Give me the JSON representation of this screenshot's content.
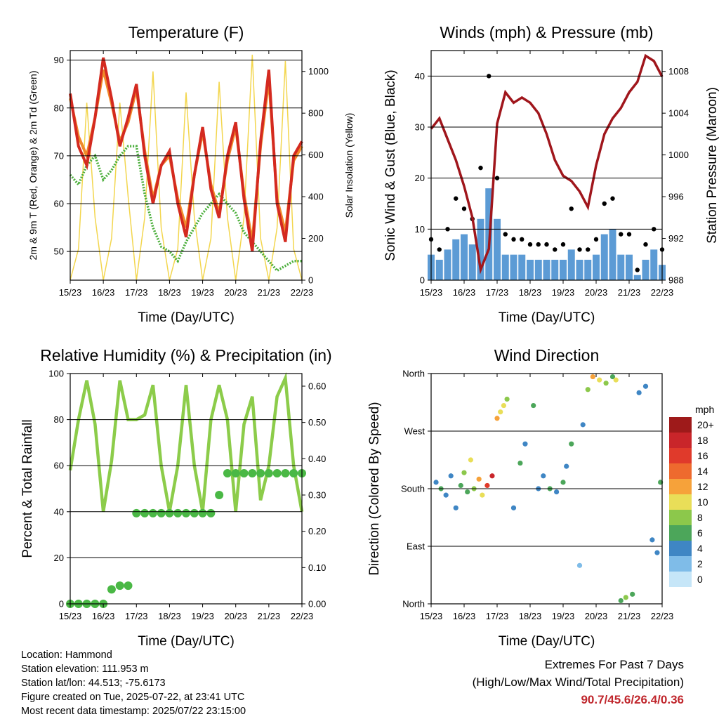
{
  "x_ticks": [
    "15/23",
    "16/23",
    "17/23",
    "18/23",
    "19/23",
    "20/23",
    "21/23",
    "22/23"
  ],
  "xlabel": "Time (Day/UTC)",
  "chart_data": [
    {
      "type": "line",
      "title": "Temperature (F)",
      "ylabel": "2m & 9m T (Red, Orange) & 2m Td (Green)",
      "ylabel_right": "Solar Insolation (Yellow)",
      "ylim": [
        44,
        92
      ],
      "yticks": [
        50,
        60,
        70,
        80,
        90
      ],
      "ylim_right": [
        0,
        1100
      ],
      "yticks_right": [
        0,
        200,
        400,
        600,
        800,
        1000
      ],
      "x": [
        0,
        0.25,
        0.5,
        0.75,
        1,
        1.25,
        1.5,
        1.75,
        2,
        2.25,
        2.5,
        2.75,
        3,
        3.25,
        3.5,
        3.75,
        4,
        4.25,
        4.5,
        4.75,
        5,
        5.25,
        5.5,
        5.75,
        6,
        6.25,
        6.5,
        6.75,
        7
      ],
      "series": [
        {
          "name": "2m T",
          "color": "#d42a20",
          "values": [
            83,
            72,
            68,
            78,
            90.5,
            82,
            72,
            78,
            85,
            70,
            60,
            68,
            71,
            60,
            53,
            66,
            76,
            63,
            57,
            70,
            77,
            61,
            50,
            73,
            88,
            60,
            52,
            70,
            73
          ]
        },
        {
          "name": "9m T",
          "color": "#f08a2a",
          "values": [
            82,
            74,
            70,
            78,
            88,
            81,
            73,
            77,
            84,
            71,
            61,
            68,
            70,
            61,
            55,
            66,
            75,
            64,
            58,
            69,
            76,
            62,
            52,
            72,
            86,
            61,
            54,
            69,
            72
          ]
        },
        {
          "name": "2m Td",
          "color": "#4aae3a",
          "values": [
            66,
            64,
            68,
            70,
            65,
            67,
            70,
            72,
            72,
            62,
            55,
            51,
            50,
            48,
            52,
            55,
            58,
            60,
            62,
            60,
            58,
            54,
            52,
            50,
            48,
            46,
            47,
            48,
            48
          ]
        },
        {
          "name": "Solar Insolation",
          "color": "#f3d64e",
          "values": [
            0,
            150,
            850,
            300,
            0,
            200,
            850,
            400,
            0,
            300,
            1000,
            250,
            0,
            150,
            900,
            300,
            0,
            200,
            950,
            300,
            0,
            300,
            1080,
            200,
            0,
            250,
            1050,
            150,
            0
          ]
        }
      ]
    },
    {
      "type": "line",
      "title": "Winds (mph) & Pressure (mb)",
      "ylabel": "Sonic Wind & Gust (Blue, Black)",
      "ylabel_right": "Station Pressure (Maroon)",
      "ylim": [
        0,
        45
      ],
      "yticks": [
        0,
        10,
        20,
        30,
        40
      ],
      "ylim_right": [
        988,
        1010
      ],
      "yticks_right": [
        988,
        992,
        996,
        1000,
        1004,
        1008
      ],
      "x": [
        0,
        0.25,
        0.5,
        0.75,
        1,
        1.25,
        1.5,
        1.75,
        2,
        2.25,
        2.5,
        2.75,
        3,
        3.25,
        3.5,
        3.75,
        4,
        4.25,
        4.5,
        4.75,
        5,
        5.25,
        5.5,
        5.75,
        6,
        6.25,
        6.5,
        6.75,
        7
      ],
      "series": [
        {
          "name": "Sonic Wind",
          "color": "#4a90d0",
          "values": [
            5,
            4,
            6,
            8,
            9,
            7,
            12,
            18,
            12,
            5,
            5,
            5,
            4,
            4,
            4,
            4,
            4,
            6,
            4,
            4,
            5,
            9,
            10,
            5,
            5,
            1,
            4,
            6,
            3
          ]
        },
        {
          "name": "Gust",
          "color": "#000000",
          "values": [
            8,
            6,
            10,
            16,
            14,
            12,
            22,
            40,
            20,
            9,
            8,
            8,
            7,
            7,
            7,
            6,
            7,
            14,
            6,
            6,
            8,
            15,
            16,
            9,
            9,
            2,
            7,
            10,
            6
          ]
        },
        {
          "name": "Station Pressure",
          "color": "#a0161c",
          "values": [
            1002.5,
            1003.5,
            1001.5,
            999.5,
            997,
            994,
            989,
            991,
            1003,
            1006,
            1005,
            1005.5,
            1005,
            1004,
            1002,
            999.5,
            998,
            997.5,
            996.5,
            995,
            999,
            1002,
            1003.5,
            1004.5,
            1006,
            1007,
            1009.5,
            1009,
            1007.5
          ]
        }
      ]
    },
    {
      "type": "line",
      "title": "Relative Humidity (%) & Precipitation (in)",
      "ylabel": "Percent & Total Rainfall",
      "ylim": [
        0,
        100
      ],
      "yticks": [
        0,
        20,
        40,
        60,
        80,
        100
      ],
      "ylim_right": [
        0,
        0.6348
      ],
      "yticks_right": [
        "0.00",
        "0.10",
        "0.20",
        "0.30",
        "0.40",
        "0.50",
        "0.60"
      ],
      "x": [
        0,
        0.25,
        0.5,
        0.75,
        1,
        1.25,
        1.5,
        1.75,
        2,
        2.25,
        2.5,
        2.75,
        3,
        3.25,
        3.5,
        3.75,
        4,
        4.25,
        4.5,
        4.75,
        5,
        5.25,
        5.5,
        5.75,
        6,
        6.25,
        6.5,
        6.75,
        7
      ],
      "series": [
        {
          "name": "Relative Humidity",
          "color": "#8ccc4a",
          "values": [
            58,
            80,
            97,
            78,
            40,
            62,
            97,
            80,
            80,
            82,
            95,
            60,
            40,
            60,
            95,
            60,
            40,
            80,
            95,
            80,
            40,
            78,
            90,
            45,
            60,
            90,
            98,
            60,
            40
          ]
        },
        {
          "name": "Total Precipitation",
          "color": "#4ab845",
          "values": [
            0,
            0,
            0,
            0,
            0,
            0.04,
            0.05,
            0.05,
            0.25,
            0.25,
            0.25,
            0.25,
            0.25,
            0.25,
            0.25,
            0.25,
            0.25,
            0.25,
            0.3,
            0.36,
            0.36,
            0.36,
            0.36,
            0.36,
            0.36,
            0.36,
            0.36,
            0.36,
            0.36
          ]
        }
      ]
    },
    {
      "type": "scatter",
      "title": "Wind Direction",
      "ylabel": "Direction (Colored By Speed)",
      "yticks": [
        "North",
        "East",
        "South",
        "West",
        "North"
      ],
      "ylim": [
        0,
        360
      ],
      "colorbar_title": "mph",
      "colorbar_labels": [
        "20+",
        "18",
        "16",
        "14",
        "12",
        "10",
        "8",
        "6",
        "4",
        "2",
        "0"
      ],
      "colorbar_colors": [
        "#9e1a1a",
        "#c9252a",
        "#e03a2b",
        "#ee6a2e",
        "#f6a23a",
        "#e9de58",
        "#8cc84b",
        "#4ca65a",
        "#3f86c4",
        "#7fbce8",
        "#c6e6f8"
      ],
      "x": [
        0.15,
        0.3,
        0.45,
        0.6,
        0.75,
        0.9,
        1.0,
        1.1,
        1.2,
        1.3,
        1.45,
        1.55,
        1.7,
        1.85,
        2.0,
        2.1,
        2.2,
        2.3,
        2.5,
        2.7,
        2.85,
        3.1,
        3.25,
        3.4,
        3.6,
        3.8,
        4.0,
        4.1,
        4.25,
        4.5,
        4.6,
        4.75,
        4.9,
        5.1,
        5.3,
        5.5,
        5.6,
        5.75,
        5.9,
        6.1,
        6.3,
        6.5,
        6.7,
        6.85,
        6.95
      ],
      "y": [
        190,
        180,
        170,
        200,
        150,
        185,
        205,
        175,
        225,
        180,
        195,
        170,
        185,
        200,
        290,
        300,
        310,
        320,
        150,
        220,
        250,
        310,
        180,
        200,
        180,
        175,
        190,
        215,
        250,
        60,
        280,
        335,
        355,
        350,
        345,
        355,
        350,
        5,
        10,
        15,
        330,
        340,
        100,
        80,
        190
      ],
      "speed": [
        4,
        5,
        3,
        4,
        3,
        5,
        8,
        6,
        9,
        8,
        12,
        10,
        16,
        18,
        12,
        10,
        9,
        8,
        4,
        5,
        4,
        6,
        4,
        3,
        5,
        4,
        6,
        4,
        5,
        2,
        3,
        8,
        12,
        10,
        8,
        6,
        9,
        6,
        7,
        5,
        4,
        3,
        3,
        4,
        5
      ]
    }
  ],
  "info": {
    "location": "Location: Hammond",
    "elevation": "Station elevation: 111.953 m",
    "latlon": "Station lat/lon: 44.513; -75.6173",
    "created": "Figure created on Tue, 2025-07-22, at 23:41 UTC",
    "recent": "Most recent data timestamp: 2025/07/22 23:15:00"
  },
  "extremes": {
    "title": "Extremes For Past 7 Days",
    "subtitle": "(High/Low/Max Wind/Total Precipitation)",
    "values": "90.7/45.6/26.4/0.36"
  }
}
